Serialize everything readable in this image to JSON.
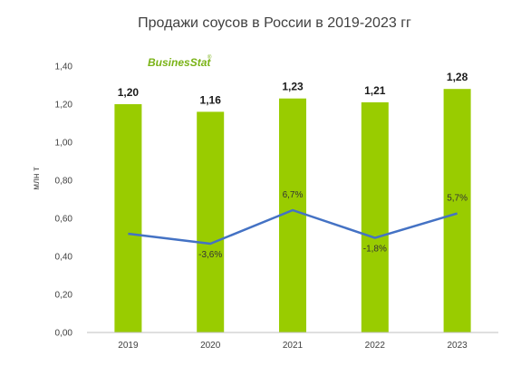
{
  "colors": {
    "bar": "#99cc00",
    "line": "#4472c4",
    "logo_green": "#7ab317",
    "axis": "#bfbfbf"
  },
  "logo": {
    "text_a": "Busines",
    "text_b": "Stat",
    "mark": "®"
  },
  "chart_data": {
    "type": "bar",
    "title": "Продажи соусов в России в 2019-2023 гг",
    "ylabel": "млн т",
    "xlabel": "",
    "ylim": [
      0,
      1.4
    ],
    "yticks": [
      0,
      0.2,
      0.4,
      0.6,
      0.8,
      1.0,
      1.2,
      1.4
    ],
    "ytick_labels": [
      "0,00",
      "0,20",
      "0,40",
      "0,60",
      "0,80",
      "1,00",
      "1,20",
      "1,40"
    ],
    "categories": [
      "2019",
      "2020",
      "2021",
      "2022",
      "2023"
    ],
    "values": [
      1.2,
      1.16,
      1.23,
      1.21,
      1.28
    ],
    "value_labels": [
      "1,20",
      "1,16",
      "1,23",
      "1,21",
      "1,28"
    ],
    "growth": {
      "type": "line",
      "values": [
        null,
        -3.6,
        6.7,
        -1.8,
        5.7
      ],
      "labels": [
        "",
        "-3,6%",
        "6,7%",
        "-1,8%",
        "5,7%"
      ]
    },
    "grid": false,
    "legend": "none"
  }
}
